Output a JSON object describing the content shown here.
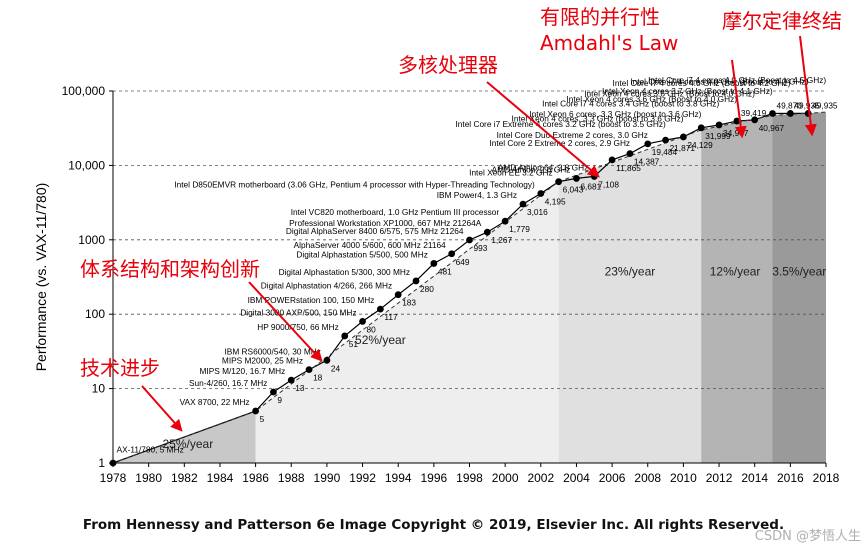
{
  "chart_data": {
    "type": "scatter",
    "ylabel": "Performance (vs. VAX-11/780)",
    "yscale": "log",
    "xlim": [
      1978,
      2018
    ],
    "ylim": [
      1,
      100000
    ],
    "x_ticks": [
      "1978",
      "1980",
      "1982",
      "1984",
      "1986",
      "1988",
      "1990",
      "1992",
      "1994",
      "1996",
      "1998",
      "2000",
      "2002",
      "2004",
      "2006",
      "2008",
      "2010",
      "2012",
      "2014",
      "2016",
      "2018"
    ],
    "y_ticks": [
      {
        "value": 1,
        "label": "1"
      },
      {
        "value": 10,
        "label": "10"
      },
      {
        "value": 100,
        "label": "100"
      },
      {
        "value": 1000,
        "label": "1000"
      },
      {
        "value": 10000,
        "label": "10,000"
      },
      {
        "value": 100000,
        "label": "100,000"
      }
    ],
    "eras": [
      {
        "x0": 1978,
        "x1": 1986,
        "rate": "25%/year",
        "color": "#c8c8c8",
        "label_x": 1982.2,
        "label_y": 1.6
      },
      {
        "x0": 1986,
        "x1": 2003,
        "rate": "52%/year",
        "color": "#eeeeee",
        "label_x": 1993.0,
        "label_y": 40
      },
      {
        "x0": 2003,
        "x1": 2011,
        "rate": "23%/year",
        "color": "#e0e0e0",
        "label_x": 2007.0,
        "label_y": 330
      },
      {
        "x0": 2011,
        "x1": 2015,
        "rate": "12%/year",
        "color": "#b4b4b4",
        "label_x": 2012.9,
        "label_y": 330
      },
      {
        "x0": 2015,
        "x1": 2018,
        "rate": "3.5%/year",
        "color": "#9a9a9a",
        "label_x": 2016.5,
        "label_y": 330
      }
    ],
    "points": [
      {
        "x": 1978.0,
        "y": 1,
        "label": "",
        "value_label": ""
      },
      {
        "x": 1986.0,
        "y": 5,
        "label": "VAX 8700, 22 MHz",
        "value_label": "5"
      },
      {
        "x": 1987.0,
        "y": 9,
        "label": "Sun-4/260, 16.7 MHz",
        "value_label": "9"
      },
      {
        "x": 1988.0,
        "y": 13,
        "label": "MIPS M/120, 16.7 MHz",
        "value_label": "13"
      },
      {
        "x": 1989.0,
        "y": 18,
        "label": "MIPS M2000, 25 MHz",
        "value_label": "18"
      },
      {
        "x": 1990.0,
        "y": 24,
        "label": "IBM RS6000/540, 30 MHz",
        "value_label": "24"
      },
      {
        "x": 1991.0,
        "y": 51,
        "label": "HP 9000/750, 66 MHz",
        "value_label": "51"
      },
      {
        "x": 1992.0,
        "y": 80,
        "label": "Digital 3000 AXP/500, 150 MHz",
        "value_label": "80"
      },
      {
        "x": 1993.0,
        "y": 117,
        "label": "IBM POWERstation 100, 150 MHz",
        "value_label": "117"
      },
      {
        "x": 1994.0,
        "y": 183,
        "label": "Digital Alphastation 4/266, 266 MHz",
        "value_label": "183"
      },
      {
        "x": 1995.0,
        "y": 280,
        "label": "Digital Alphastation 5/300, 300 MHz",
        "value_label": "280"
      },
      {
        "x": 1996.0,
        "y": 481,
        "label": "Digital Alphastation 5/500, 500 MHz",
        "value_label": "481"
      },
      {
        "x": 1997.0,
        "y": 649,
        "label": "AlphaServer 4000 5/600, 600 MHz 21164",
        "value_label": "649"
      },
      {
        "x": 1998.0,
        "y": 993,
        "label": "Digital AlphaServer 8400 6/575, 575 MHz 21264",
        "value_label": "993"
      },
      {
        "x": 1999.0,
        "y": 1267,
        "label": "Professional Workstation XP1000, 667 MHz 21264A",
        "value_label": "1,267"
      },
      {
        "x": 2000.0,
        "y": 1779,
        "label": "Intel VC820 motherboard, 1.0 GHz Pentium III processor",
        "value_label": "1,779"
      },
      {
        "x": 2001.0,
        "y": 3016,
        "label": "IBM Power4, 1.3 GHz",
        "value_label": "3,016"
      },
      {
        "x": 2002.0,
        "y": 4195,
        "label": "Intel D850EMVR motherboard (3.06 GHz, Pentium 4 processor with Hyper-Threading Technology)",
        "value_label": "4,195"
      },
      {
        "x": 2003.0,
        "y": 6043,
        "label": "Intel Xeon EE 3.2 GHz",
        "value_label": "6,043"
      },
      {
        "x": 2004.0,
        "y": 6681,
        "label": "AMD Athlon, 2.6 GHz",
        "value_label": "6,681"
      },
      {
        "x": 2005.0,
        "y": 7108,
        "label": "AMD Athlon 64, 2.8 GHz",
        "value_label": "7,108"
      },
      {
        "x": 2006.0,
        "y": 11865,
        "label": "Intel Core 2 Extreme 2 cores, 2.9 GHz",
        "value_label": "11,865"
      },
      {
        "x": 2007.0,
        "y": 14387,
        "label": "Intel Core Duo Extreme 2 cores, 3.0 GHz",
        "value_label": "14,387"
      },
      {
        "x": 2008.0,
        "y": 19484,
        "label": "Intel Core i7 Extreme 4 cores 3.2 GHz (boost to 3.5 GHz)",
        "value_label": "19,484"
      },
      {
        "x": 2009.0,
        "y": 21871,
        "label": "Intel Xeon 4 cores, 3.3 GHz (boost to 3.6 GHz)",
        "value_label": "21,871"
      },
      {
        "x": 2010.0,
        "y": 24129,
        "label": "Intel Xeon 6 cores, 3.3 GHz (boost to 3.6 GHz)",
        "value_label": "24,129"
      },
      {
        "x": 2011.0,
        "y": 31999,
        "label": "Intel Core i7 4 cores 3.4 GHz (boost to 3.8 GHz)",
        "value_label": "31,999"
      },
      {
        "x": 2012.0,
        "y": 34967,
        "label": "Intel Xeon 4 cores 3.6 GHz (Boost to 4.0 GHz)",
        "value_label": "34,967"
      },
      {
        "x": 2013.0,
        "y": 39419,
        "label": "Intel Xeon 4 cores 3.6 GHz (Boost to 4.0 GHz)",
        "value_label": "39,419"
      },
      {
        "x": 2014.0,
        "y": 40967,
        "label": "Intel Xeon 4 cores 3.7 GHz (Boost to 4.1 GHz)",
        "value_label": "40,967"
      },
      {
        "x": 2015.0,
        "y": 49870,
        "label": "Intel Core i7 4 cores 4.0 GHz (Boost to 4.2 GHz)",
        "value_label": "49,870"
      },
      {
        "x": 2016.0,
        "y": 49935,
        "label": "Intel Core i7 4 cores 4.0 GHz (Boost to 4.2 GHz)",
        "value_label": "49,935"
      },
      {
        "x": 2017.0,
        "y": 49935,
        "label": "Intel Core i7 4 cores 4.2 GHz (Boost to 4.5 GHz)",
        "value_label": "49,935"
      }
    ],
    "first_point_label": "AX-11/780, 5 MHz",
    "annotations": [
      {
        "text": "有限的并行性",
        "color": "#e8000b",
        "x": 1803,
        "y": 1
      },
      {
        "text": "Amdahl's Law",
        "color": "#e8000b"
      },
      {
        "text": "摩尔定律终结",
        "color": "#e8000b"
      },
      {
        "text": "多核处理器",
        "color": "#e8000b"
      },
      {
        "text": "体系结构和架构创新",
        "color": "#e8000b"
      },
      {
        "text": "技术进步",
        "color": "#e8000b"
      }
    ],
    "grid": "horizontal dashed"
  },
  "caption": "From Hennessy and Patterson 6e Image Copyright © 2019, Elsevier Inc. All rights Reserved.",
  "watermark": "CSDN @梦悟人生"
}
